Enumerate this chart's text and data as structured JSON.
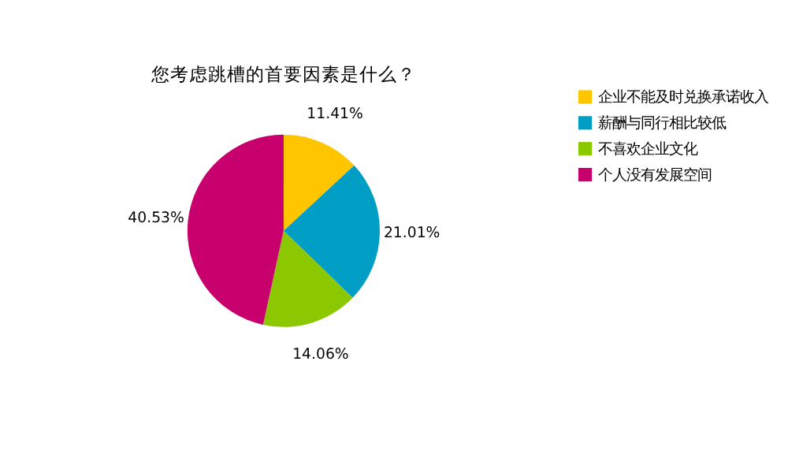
{
  "chart_data": {
    "type": "pie",
    "title": "您考虑跳槽的首要因素是什么？",
    "categories": [
      "企业不能及时兑换承诺收入",
      "薪酬与同行相比较低",
      "不喜欢企业文化",
      "个人没有发展空间"
    ],
    "values": [
      11.41,
      21.01,
      14.06,
      40.53
    ],
    "colors": [
      "#ffc600",
      "#009dc4",
      "#8cc800",
      "#c8006e"
    ],
    "value_labels": [
      "11.41%",
      "21.01%",
      "14.06%",
      "40.53%"
    ],
    "legend": "right"
  }
}
